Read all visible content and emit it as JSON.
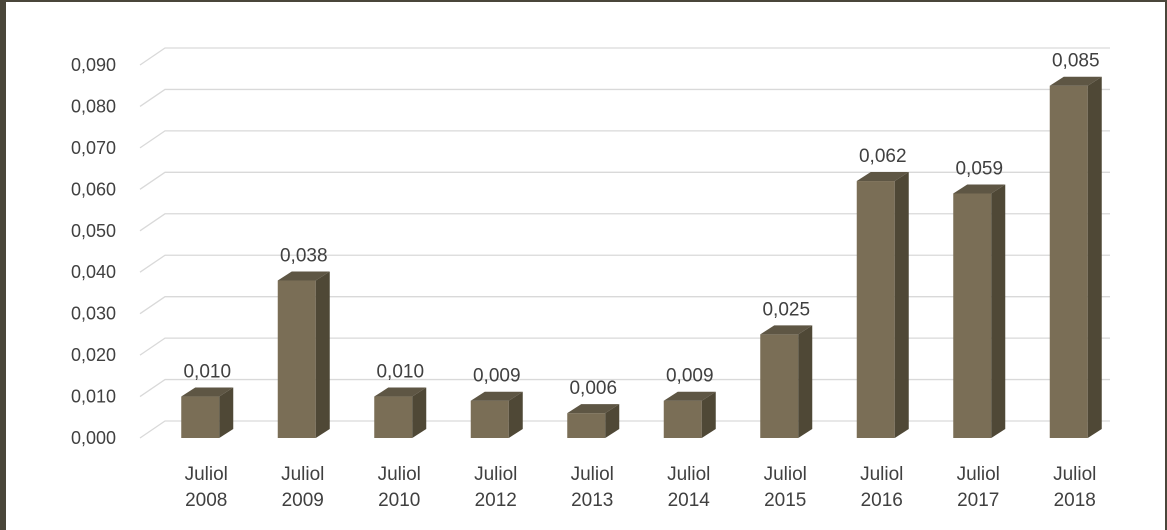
{
  "chart_data": {
    "type": "bar",
    "title": "",
    "xlabel": "",
    "ylabel": "",
    "ylim": [
      0,
      0.09
    ],
    "ytick_step": 0.01,
    "ytick_labels": [
      "0,000",
      "0,010",
      "0,020",
      "0,030",
      "0,040",
      "0,050",
      "0,060",
      "0,070",
      "0,080",
      "0,090"
    ],
    "grid": true,
    "legend": "none",
    "style": "3d-column",
    "categories": [
      [
        "Juliol",
        "2008"
      ],
      [
        "Juliol",
        "2009"
      ],
      [
        "Juliol",
        "2010"
      ],
      [
        "Juliol",
        "2012"
      ],
      [
        "Juliol",
        "2013"
      ],
      [
        "Juliol",
        "2014"
      ],
      [
        "Juliol",
        "2015"
      ],
      [
        "Juliol",
        "2016"
      ],
      [
        "Juliol",
        "2017"
      ],
      [
        "Juliol",
        "2018"
      ]
    ],
    "values": [
      0.01,
      0.038,
      0.01,
      0.009,
      0.006,
      0.009,
      0.025,
      0.062,
      0.059,
      0.085
    ],
    "value_labels": [
      "0,010",
      "0,038",
      "0,010",
      "0,009",
      "0,006",
      "0,009",
      "0,025",
      "0,062",
      "0,059",
      "0,085"
    ],
    "colors": {
      "bar_front": "#7a6e56",
      "bar_side": "#4f4836",
      "bar_top": "#5e5644",
      "grid": "#d9d9d9",
      "frame": "#4a463a"
    }
  }
}
